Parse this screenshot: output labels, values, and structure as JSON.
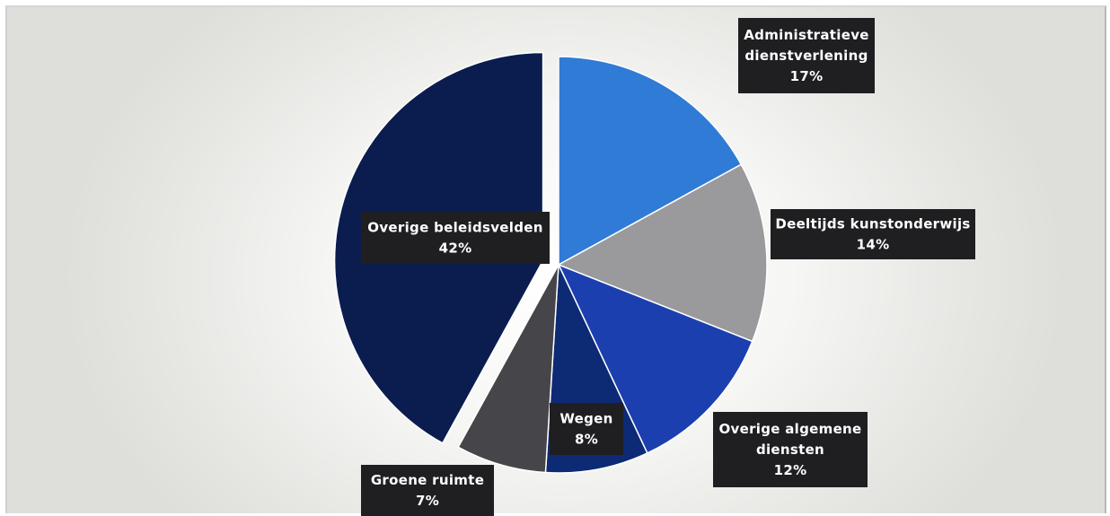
{
  "chart_data": {
    "type": "pie",
    "slices": [
      {
        "label": "Administratieve\ndienstverlening",
        "value": 17,
        "value_label": "17%",
        "color": "#2f7bd6"
      },
      {
        "label": "Deeltijds kunstonderwijs",
        "value": 14,
        "value_label": "14%",
        "color": "#9a9a9c"
      },
      {
        "label": "Overige algemene\ndiensten",
        "value": 12,
        "value_label": "12%",
        "color": "#1c3fb0"
      },
      {
        "label": "Wegen",
        "value": 8,
        "value_label": "8%",
        "color": "#0d2a74"
      },
      {
        "label": "Groene ruimte",
        "value": 7,
        "value_label": "7%",
        "color": "#464549"
      },
      {
        "label": "Overige beleidsvelden",
        "value": 42,
        "value_label": "42%",
        "color": "#0b1d4f"
      }
    ],
    "exploded_slice": "Overige beleidsvelden",
    "legend": "none",
    "data_labels": "category and percentage"
  }
}
